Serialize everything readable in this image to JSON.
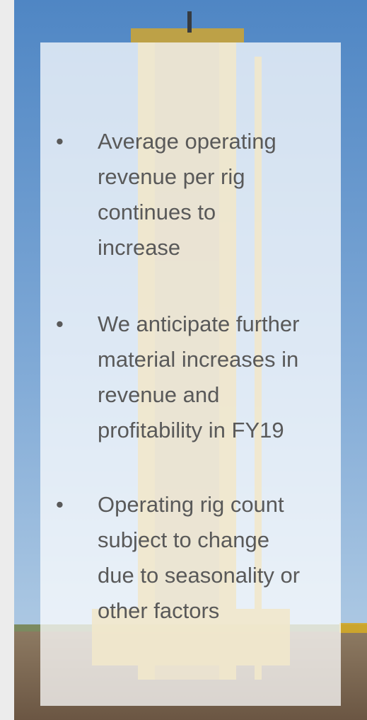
{
  "bullets": [
    {
      "marker": "•",
      "lines": [
        "Average operating",
        "revenue per rig",
        "continues to",
        "increase"
      ]
    },
    {
      "marker": "•",
      "lines": [
        "We anticipate further",
        "material increases in",
        "revenue and",
        "profitability in FY19"
      ]
    },
    {
      "marker": "•",
      "lines": [
        "Operating rig count",
        "subject to change",
        "due to seasonality or",
        "other factors"
      ]
    }
  ]
}
